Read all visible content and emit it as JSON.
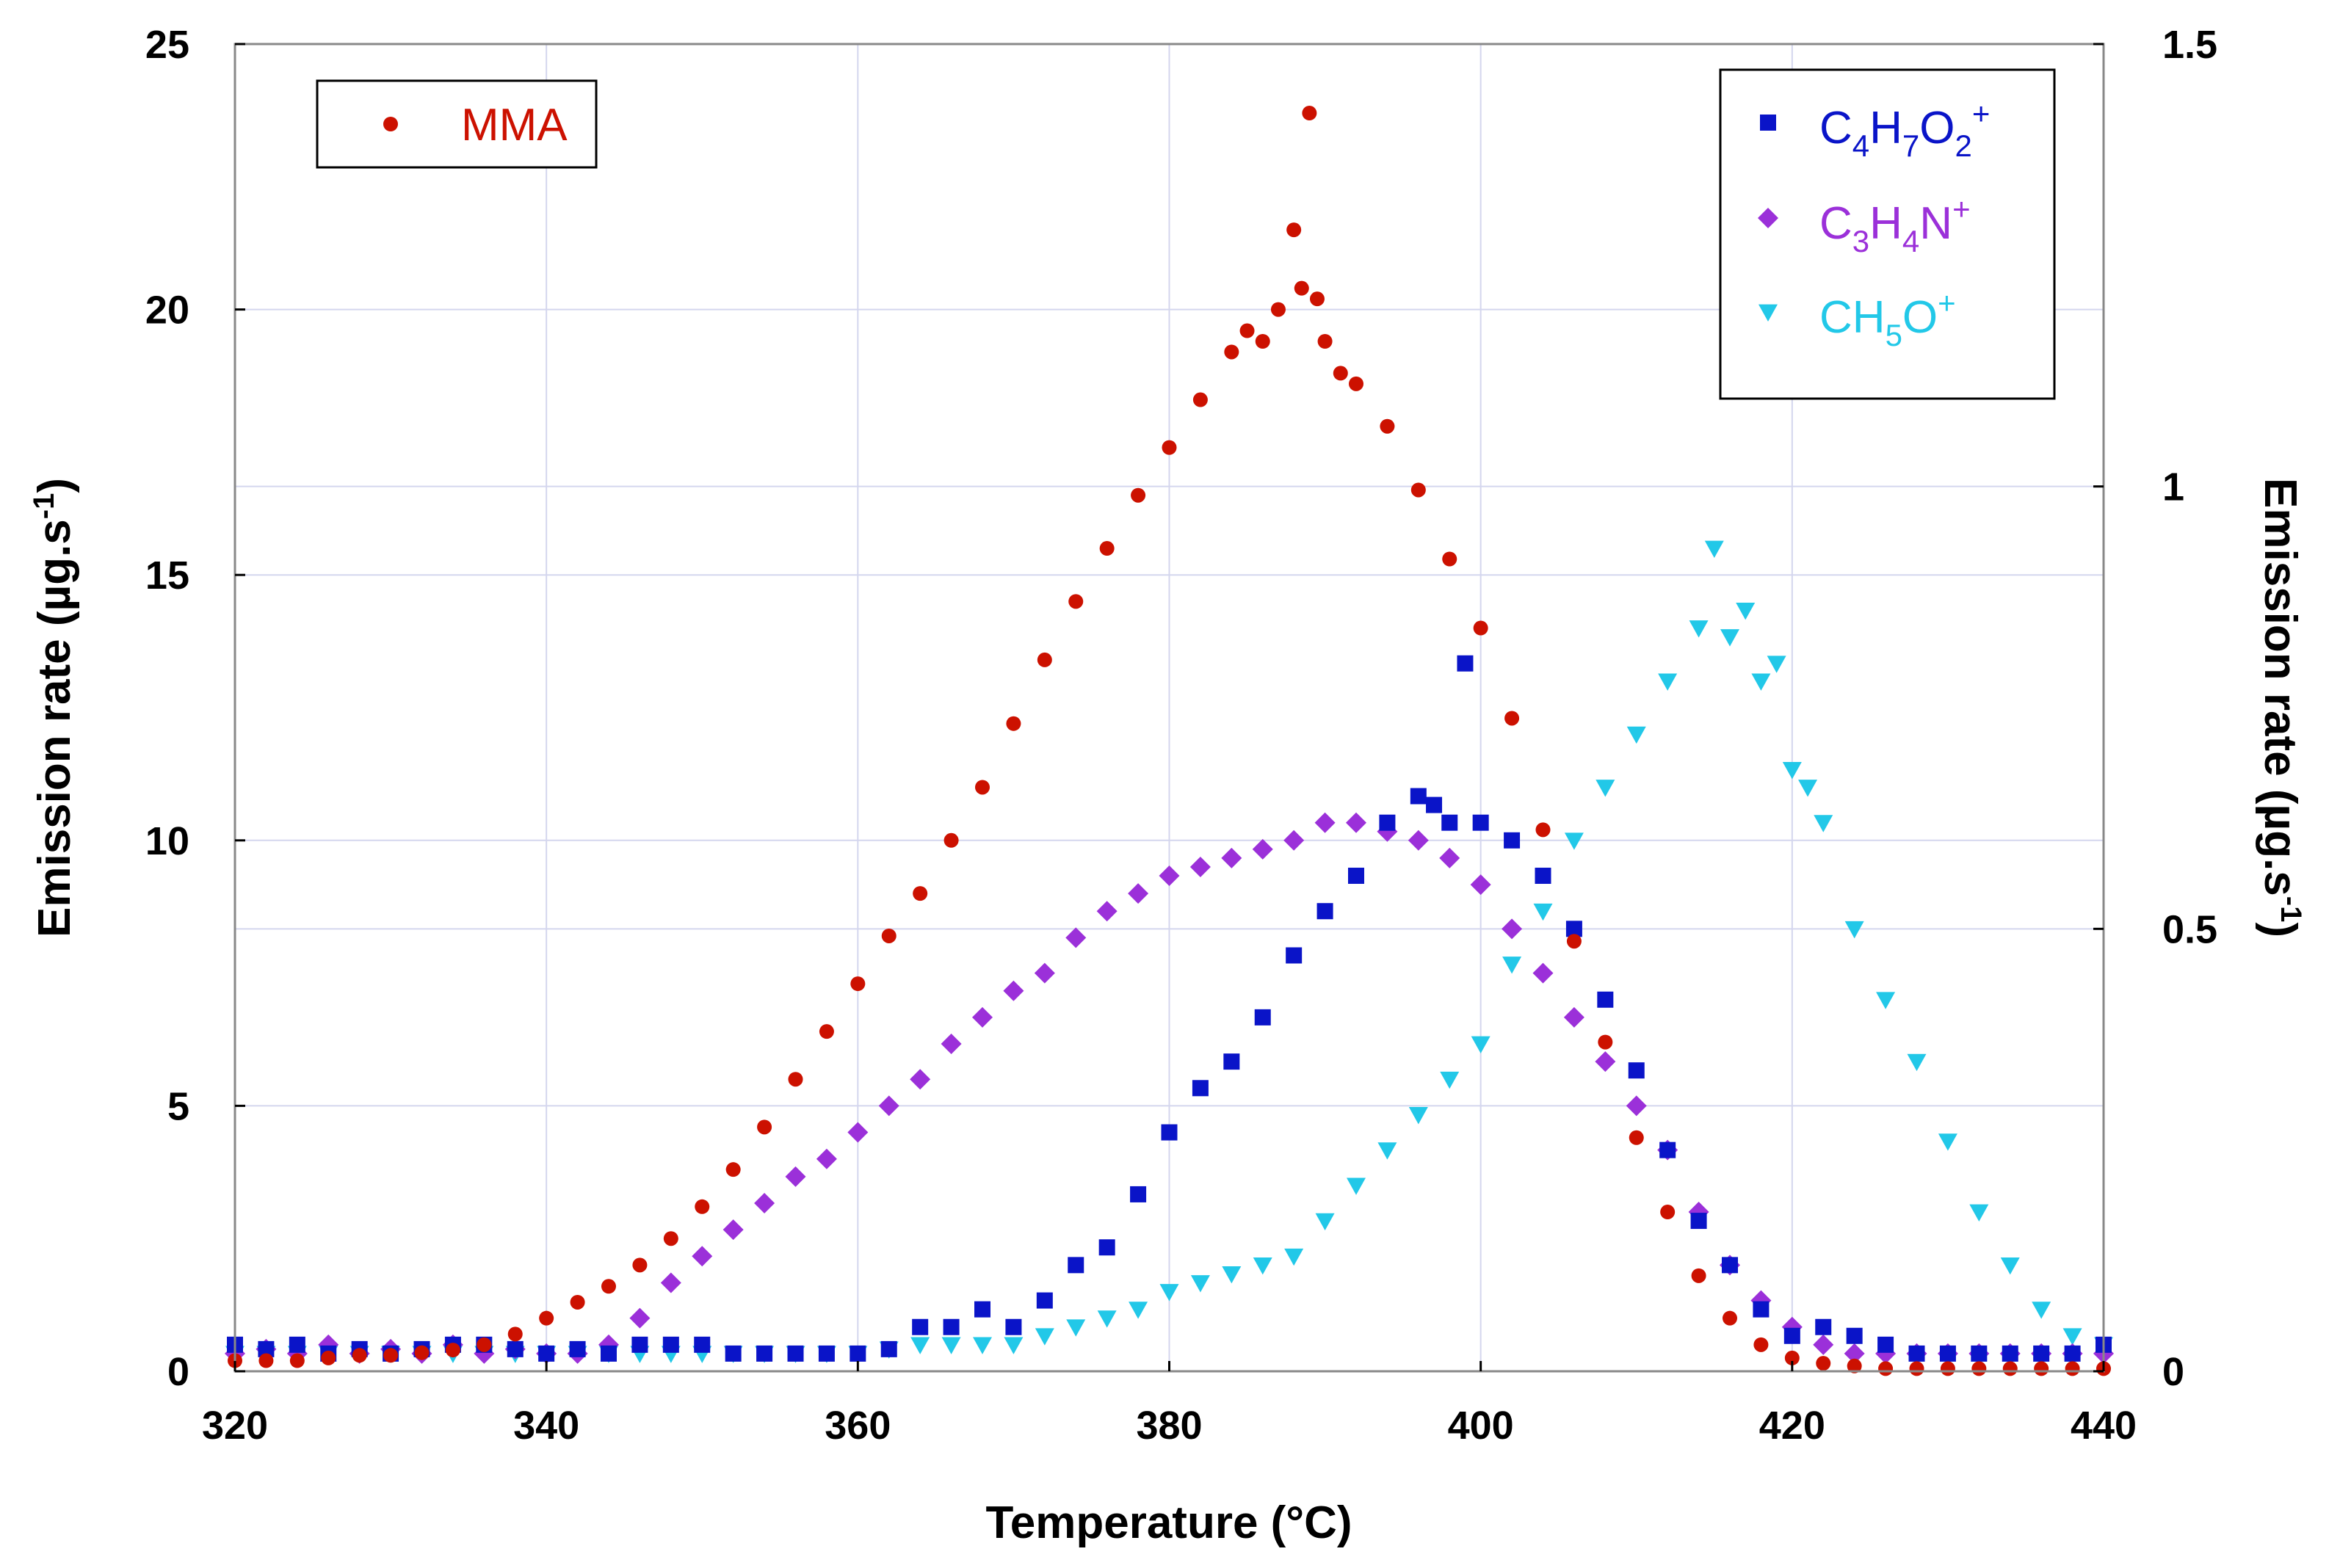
{
  "chart_data": {
    "type": "scatter",
    "title": "",
    "xlabel": "Temperature (°C)",
    "ylabel_left": "Emission rate (µg.s",
    "ylabel_right": "Emission rate (µg.s",
    "ylabel_exponent": "-1",
    "ylabel_close": ")",
    "xlim": [
      320,
      440
    ],
    "ylim_left": [
      0,
      25
    ],
    "ylim_right": [
      0,
      1.5
    ],
    "x_ticks": [
      "320",
      "340",
      "360",
      "380",
      "400",
      "420",
      "440"
    ],
    "y_left_ticks": [
      "0",
      "5",
      "10",
      "15",
      "20",
      "25"
    ],
    "y_right_ticks": [
      "0",
      "0.5",
      "1",
      "1.5"
    ],
    "grid": true,
    "legend_left": {
      "position": "top-left",
      "entries": [
        {
          "label": "MMA",
          "marker": "circle",
          "color": "#cc1100"
        }
      ]
    },
    "legend_right": {
      "position": "top-right",
      "entries": [
        {
          "parts": [
            [
              "C",
              ""
            ],
            [
              "4",
              "sub"
            ],
            [
              "H",
              ""
            ],
            [
              "7",
              "sub"
            ],
            [
              "O",
              ""
            ],
            [
              "2",
              "sub"
            ],
            [
              "+",
              "sup"
            ]
          ],
          "marker": "square",
          "color": "#0a14c8"
        },
        {
          "parts": [
            [
              "C",
              ""
            ],
            [
              "3",
              "sub"
            ],
            [
              "H",
              ""
            ],
            [
              "4",
              "sub"
            ],
            [
              "N",
              ""
            ],
            [
              "+",
              "sup"
            ]
          ],
          "marker": "diamond",
          "color": "#9b30d9"
        },
        {
          "parts": [
            [
              "CH",
              ""
            ],
            [
              "5",
              "sub"
            ],
            [
              "O",
              ""
            ],
            [
              "+",
              "sup"
            ]
          ],
          "marker": "triangle-down",
          "color": "#22c8e8"
        }
      ]
    },
    "series": [
      {
        "name": "MMA",
        "axis": "left",
        "marker": "circle",
        "color": "#cc1100",
        "x": [
          320,
          322,
          324,
          326,
          328,
          330,
          332,
          334,
          336,
          338,
          340,
          342,
          344,
          346,
          348,
          350,
          352,
          354,
          356,
          358,
          360,
          362,
          364,
          366,
          368,
          370,
          372,
          374,
          376,
          378,
          380,
          382,
          384,
          385,
          386,
          387,
          388,
          388.5,
          389,
          389.5,
          390,
          391,
          392,
          394,
          396,
          398,
          400,
          402,
          404,
          406,
          408,
          410,
          412,
          414,
          416,
          418,
          420,
          422,
          424,
          426,
          428,
          430,
          432,
          434,
          436,
          438,
          440
        ],
        "y": [
          0.2,
          0.2,
          0.2,
          0.25,
          0.3,
          0.3,
          0.35,
          0.4,
          0.5,
          0.7,
          1.0,
          1.3,
          1.6,
          2.0,
          2.5,
          3.1,
          3.8,
          4.6,
          5.5,
          6.4,
          7.3,
          8.2,
          9.0,
          10.0,
          11.0,
          12.2,
          13.4,
          14.5,
          15.5,
          16.5,
          17.4,
          18.3,
          19.2,
          19.6,
          19.4,
          20.0,
          21.5,
          20.4,
          23.7,
          20.2,
          19.4,
          18.8,
          18.6,
          17.8,
          16.6,
          15.3,
          14.0,
          12.3,
          10.2,
          8.1,
          6.2,
          4.4,
          3.0,
          1.8,
          1.0,
          0.5,
          0.25,
          0.15,
          0.1,
          0.05,
          0.05,
          0.05,
          0.05,
          0.05,
          0.05,
          0.05,
          0.05
        ]
      },
      {
        "name": "C4H7O2+",
        "axis": "right",
        "marker": "square",
        "color": "#0a14c8",
        "x": [
          320,
          322,
          324,
          326,
          328,
          330,
          332,
          334,
          336,
          338,
          340,
          342,
          344,
          346,
          348,
          350,
          352,
          354,
          356,
          358,
          360,
          362,
          364,
          366,
          368,
          370,
          372,
          374,
          376,
          378,
          380,
          382,
          384,
          386,
          388,
          390,
          392,
          394,
          396,
          397,
          398,
          399,
          400,
          402,
          404,
          406,
          408,
          410,
          412,
          414,
          416,
          418,
          420,
          422,
          424,
          426,
          428,
          430,
          432,
          434,
          436,
          438,
          440
        ],
        "y": [
          0.03,
          0.025,
          0.03,
          0.02,
          0.025,
          0.02,
          0.025,
          0.03,
          0.03,
          0.025,
          0.02,
          0.025,
          0.02,
          0.03,
          0.03,
          0.03,
          0.02,
          0.02,
          0.02,
          0.02,
          0.02,
          0.025,
          0.05,
          0.05,
          0.07,
          0.05,
          0.08,
          0.12,
          0.14,
          0.2,
          0.27,
          0.32,
          0.35,
          0.4,
          0.47,
          0.52,
          0.56,
          0.62,
          0.65,
          0.64,
          0.62,
          0.8,
          0.62,
          0.6,
          0.56,
          0.5,
          0.42,
          0.34,
          0.25,
          0.17,
          0.12,
          0.07,
          0.04,
          0.05,
          0.04,
          0.03,
          0.02,
          0.02,
          0.02,
          0.02,
          0.02,
          0.02,
          0.03
        ]
      },
      {
        "name": "C3H4N+",
        "axis": "right",
        "marker": "diamond",
        "color": "#9b30d9",
        "x": [
          320,
          322,
          324,
          326,
          328,
          330,
          332,
          334,
          336,
          338,
          340,
          342,
          344,
          346,
          348,
          350,
          352,
          354,
          356,
          358,
          360,
          362,
          364,
          366,
          368,
          370,
          372,
          374,
          376,
          378,
          380,
          382,
          384,
          386,
          388,
          390,
          392,
          394,
          396,
          398,
          400,
          402,
          404,
          406,
          408,
          410,
          412,
          414,
          416,
          418,
          420,
          422,
          424,
          426,
          428,
          430,
          432,
          434,
          436,
          438,
          440
        ],
        "y": [
          0.02,
          0.025,
          0.02,
          0.03,
          0.02,
          0.025,
          0.02,
          0.03,
          0.02,
          0.025,
          0.02,
          0.02,
          0.03,
          0.06,
          0.1,
          0.13,
          0.16,
          0.19,
          0.22,
          0.24,
          0.27,
          0.3,
          0.33,
          0.37,
          0.4,
          0.43,
          0.45,
          0.49,
          0.52,
          0.54,
          0.56,
          0.57,
          0.58,
          0.59,
          0.6,
          0.62,
          0.62,
          0.61,
          0.6,
          0.58,
          0.55,
          0.5,
          0.45,
          0.4,
          0.35,
          0.3,
          0.25,
          0.18,
          0.12,
          0.08,
          0.05,
          0.03,
          0.02,
          0.02,
          0.02,
          0.02,
          0.02,
          0.02,
          0.02,
          0.02,
          0.02
        ]
      },
      {
        "name": "CH5O+",
        "axis": "right",
        "marker": "triangle-down",
        "color": "#22c8e8",
        "x": [
          320,
          322,
          324,
          326,
          328,
          330,
          332,
          334,
          336,
          338,
          340,
          342,
          344,
          346,
          348,
          350,
          352,
          354,
          356,
          358,
          360,
          362,
          364,
          366,
          368,
          370,
          372,
          374,
          376,
          378,
          380,
          382,
          384,
          386,
          388,
          390,
          392,
          394,
          396,
          398,
          400,
          402,
          404,
          406,
          408,
          410,
          412,
          414,
          415,
          416,
          417,
          418,
          419,
          420,
          421,
          422,
          424,
          426,
          428,
          430,
          432,
          434,
          436,
          438,
          440
        ],
        "y": [
          0.02,
          0.02,
          0.02,
          0.02,
          0.02,
          0.02,
          0.02,
          0.02,
          0.02,
          0.02,
          0.02,
          0.02,
          0.02,
          0.02,
          0.02,
          0.02,
          0.02,
          0.02,
          0.02,
          0.02,
          0.02,
          0.025,
          0.03,
          0.03,
          0.03,
          0.03,
          0.04,
          0.05,
          0.06,
          0.07,
          0.09,
          0.1,
          0.11,
          0.12,
          0.13,
          0.17,
          0.21,
          0.25,
          0.29,
          0.33,
          0.37,
          0.46,
          0.52,
          0.6,
          0.66,
          0.72,
          0.78,
          0.84,
          0.93,
          0.83,
          0.86,
          0.78,
          0.8,
          0.68,
          0.66,
          0.62,
          0.5,
          0.42,
          0.35,
          0.26,
          0.18,
          0.12,
          0.07,
          0.04,
          0.03
        ]
      }
    ]
  }
}
